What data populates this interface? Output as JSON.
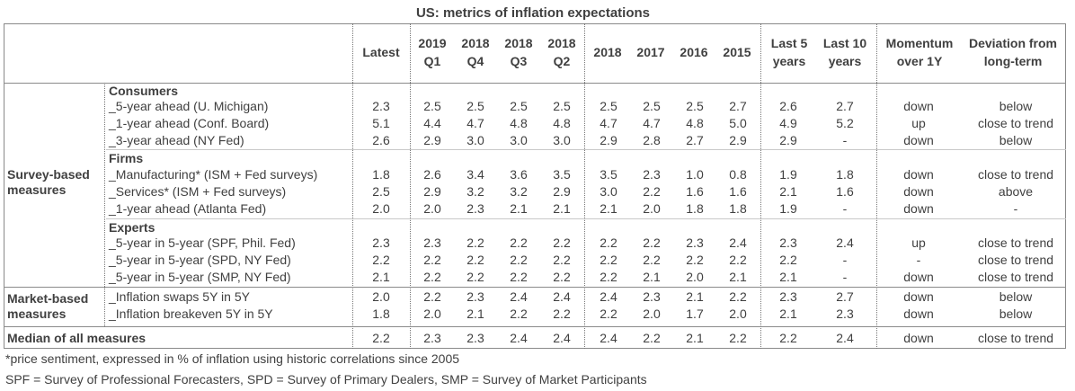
{
  "title": "US: metrics of inflation expectations",
  "headers": {
    "latest": "Latest",
    "q1": [
      "2019",
      "Q1"
    ],
    "q2": [
      "2018",
      "Q4"
    ],
    "q3": [
      "2018",
      "Q3"
    ],
    "q4": [
      "2018",
      "Q2"
    ],
    "y1": "2018",
    "y2": "2017",
    "y3": "2016",
    "y4": "2015",
    "last5": [
      "Last 5",
      "years"
    ],
    "last10": [
      "Last 10",
      "years"
    ],
    "momentum": [
      "Momentum",
      "over 1Y"
    ],
    "deviation": [
      "Deviation from",
      "long-term"
    ]
  },
  "categories": {
    "survey": [
      "Survey-based",
      "measures"
    ],
    "market": [
      "Market-based",
      "measures"
    ],
    "median": "Median of all measures"
  },
  "subgroups": {
    "consumers": "Consumers",
    "firms": "Firms",
    "experts": "Experts"
  },
  "rows": [
    {
      "label": "_5-year ahead (U. Michigan)",
      "values": [
        "2.3",
        "2.5",
        "2.5",
        "2.5",
        "2.5",
        "2.5",
        "2.5",
        "2.5",
        "2.7",
        "2.6",
        "2.7"
      ],
      "momentum": "down",
      "deviation": "below"
    },
    {
      "label": "_1-year ahead (Conf. Board)",
      "values": [
        "5.1",
        "4.4",
        "4.7",
        "4.8",
        "4.8",
        "4.7",
        "4.7",
        "4.8",
        "5.0",
        "4.9",
        "5.2"
      ],
      "momentum": "up",
      "deviation": "close to trend"
    },
    {
      "label": "_3-year ahead (NY Fed)",
      "values": [
        "2.6",
        "2.9",
        "3.0",
        "3.0",
        "3.0",
        "2.9",
        "2.8",
        "2.7",
        "2.9",
        "2.9",
        "-"
      ],
      "momentum": "down",
      "deviation": "below"
    },
    {
      "label": "_Manufacturing* (ISM + Fed surveys)",
      "values": [
        "1.8",
        "2.6",
        "3.4",
        "3.6",
        "3.5",
        "3.5",
        "2.3",
        "1.0",
        "0.8",
        "1.9",
        "1.8"
      ],
      "momentum": "down",
      "deviation": "close to trend"
    },
    {
      "label": "_Services* (ISM + Fed surveys)",
      "values": [
        "2.5",
        "2.9",
        "3.2",
        "3.2",
        "2.9",
        "3.0",
        "2.2",
        "1.6",
        "1.6",
        "2.1",
        "1.6"
      ],
      "momentum": "down",
      "deviation": "above"
    },
    {
      "label": "_1-year ahead (Atlanta Fed)",
      "values": [
        "2.0",
        "2.0",
        "2.3",
        "2.1",
        "2.1",
        "2.1",
        "2.0",
        "1.8",
        "1.8",
        "1.9",
        "-"
      ],
      "momentum": "down",
      "deviation": "-"
    },
    {
      "label": "_5-year in 5-year (SPF, Phil. Fed)",
      "values": [
        "2.3",
        "2.3",
        "2.2",
        "2.2",
        "2.2",
        "2.2",
        "2.2",
        "2.3",
        "2.4",
        "2.3",
        "2.4"
      ],
      "momentum": "up",
      "deviation": "close to trend"
    },
    {
      "label": "_5-year in 5-year (SPD, NY Fed)",
      "values": [
        "2.2",
        "2.2",
        "2.2",
        "2.2",
        "2.2",
        "2.2",
        "2.2",
        "2.2",
        "2.2",
        "2.2",
        "-"
      ],
      "momentum": "-",
      "deviation": "close to trend"
    },
    {
      "label": "_5-year in 5-year (SMP, NY Fed)",
      "values": [
        "2.1",
        "2.2",
        "2.2",
        "2.2",
        "2.2",
        "2.2",
        "2.1",
        "2.0",
        "2.1",
        "2.1",
        "-"
      ],
      "momentum": "down",
      "deviation": "close to trend"
    },
    {
      "label": "_Inflation swaps 5Y in 5Y",
      "values": [
        "2.0",
        "2.2",
        "2.3",
        "2.4",
        "2.4",
        "2.4",
        "2.3",
        "2.1",
        "2.2",
        "2.3",
        "2.7"
      ],
      "momentum": "down",
      "deviation": "below"
    },
    {
      "label": "_Inflation breakeven 5Y in 5Y",
      "values": [
        "1.8",
        "2.0",
        "2.1",
        "2.2",
        "2.2",
        "2.2",
        "2.0",
        "1.7",
        "2.0",
        "2.1",
        "2.3"
      ],
      "momentum": "down",
      "deviation": "below"
    }
  ],
  "median": {
    "values": [
      "2.2",
      "2.3",
      "2.3",
      "2.4",
      "2.4",
      "2.4",
      "2.2",
      "2.1",
      "2.2",
      "2.2",
      "2.4"
    ],
    "momentum": "down",
    "deviation": "close to trend"
  },
  "footnotes": [
    "*price sentiment, expressed in % of inflation using historic correlations since 2005",
    "SPF = Survey of Professional Forecasters, SPD = Survey of Primary Dealers, SMP = Survey of Market Participants"
  ]
}
